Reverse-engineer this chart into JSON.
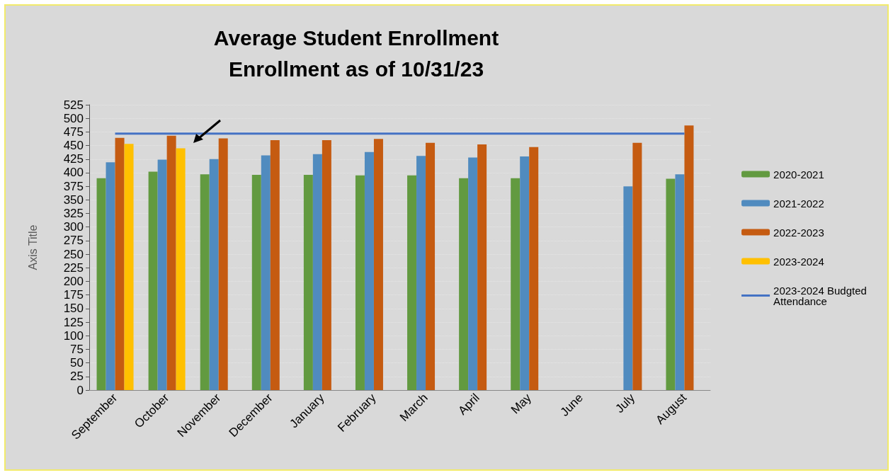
{
  "chart_data": {
    "type": "bar",
    "title": "Average Student Enrollment\nEnrollment as of 10/31/23",
    "ylabel": "Axis Title",
    "categories": [
      "September",
      "October",
      "November",
      "December",
      "January",
      "February",
      "March",
      "April",
      "May",
      "June",
      "July",
      "August"
    ],
    "series": [
      {
        "name": "2020-2021",
        "color": "#629a40",
        "values": [
          390,
          402,
          397,
          396,
          396,
          395,
          395,
          390,
          390,
          null,
          null,
          389
        ]
      },
      {
        "name": "2021-2022",
        "color": "#508bbf",
        "values": [
          419,
          424,
          425,
          432,
          434,
          438,
          431,
          428,
          430,
          null,
          375,
          397
        ]
      },
      {
        "name": "2022-2023",
        "color": "#c55b11",
        "values": [
          464,
          468,
          463,
          460,
          460,
          462,
          455,
          452,
          447,
          null,
          455,
          487
        ]
      },
      {
        "name": "2023-2024",
        "color": "#ffc000",
        "values": [
          453,
          445,
          null,
          null,
          null,
          null,
          null,
          null,
          null,
          null,
          null,
          null
        ]
      },
      {
        "name": "2023-2024 Budgted Attendance",
        "type": "line",
        "color": "#4472c4",
        "values": [
          472,
          472,
          472,
          472,
          472,
          472,
          472,
          472,
          472,
          472,
          472,
          472
        ]
      }
    ],
    "ylim": [
      0,
      525
    ],
    "yticks": [
      0,
      25,
      50,
      75,
      100,
      125,
      150,
      175,
      200,
      225,
      250,
      275,
      300,
      325,
      350,
      375,
      400,
      425,
      450,
      475,
      500,
      525
    ],
    "grid": "y",
    "legend": "right",
    "marker": "none"
  }
}
